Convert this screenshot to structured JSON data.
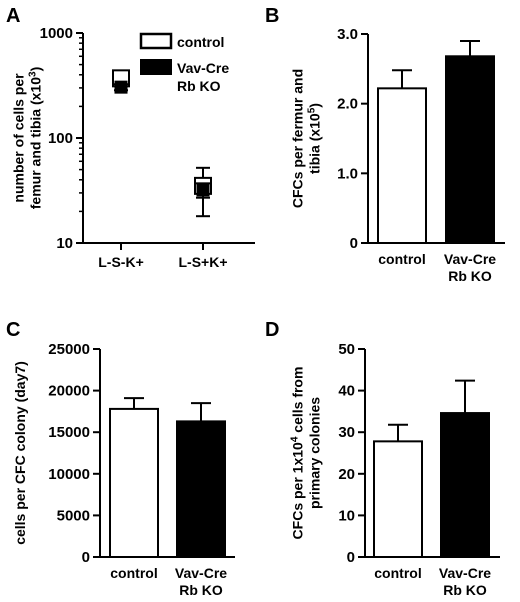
{
  "chart_data": [
    {
      "panel": "A",
      "type": "scatter",
      "scale": "log",
      "ylabel_lines": [
        "number of cells per",
        "femur and tibia (x10³)"
      ],
      "ylim": [
        10,
        1000
      ],
      "yticks": [
        10,
        100,
        1000
      ],
      "categories": [
        "L-S-K+",
        "L-S+K+"
      ],
      "legend": [
        "control",
        "Vav-Cre\nRb KO"
      ],
      "legend_lines": [
        [
          "control"
        ],
        [
          "Vav-Cre",
          "Rb KO"
        ]
      ],
      "legend_position": "top-right",
      "series": [
        {
          "name": "control",
          "values": [
            370,
            35
          ],
          "err": [
            50,
            17
          ],
          "color": "#ffffff"
        },
        {
          "name": "Vav-Cre Rb KO",
          "values": [
            305,
            32
          ],
          "err": [
            20,
            5
          ],
          "color": "#000000"
        }
      ]
    },
    {
      "panel": "B",
      "type": "bar",
      "ylabel_lines": [
        "CFCs per fermur and",
        "tibia (x10⁵)"
      ],
      "ylim": [
        0,
        3.0
      ],
      "yticks": [
        "0",
        "1.0",
        "2.0",
        "3.0"
      ],
      "categories": [
        "control",
        "Vav-Cre\nRb KO"
      ],
      "category_lines": [
        [
          "control"
        ],
        [
          "Vav-Cre",
          "Rb KO"
        ]
      ],
      "values": [
        2.22,
        2.68
      ],
      "err": [
        0.26,
        0.22
      ],
      "colors": [
        "#ffffff",
        "#000000"
      ]
    },
    {
      "panel": "C",
      "type": "bar",
      "ylabel_lines": [
        "cells per CFC colony (day7)"
      ],
      "ylim": [
        0,
        25000
      ],
      "yticks": [
        "0",
        "5000",
        "10000",
        "15000",
        "20000",
        "25000"
      ],
      "categories": [
        "control",
        "Vav-Cre\nRb KO"
      ],
      "category_lines": [
        [
          "control"
        ],
        [
          "Vav-Cre",
          "Rb KO"
        ]
      ],
      "values": [
        17800,
        16300
      ],
      "err": [
        1300,
        2200
      ],
      "colors": [
        "#ffffff",
        "#000000"
      ]
    },
    {
      "panel": "D",
      "type": "bar",
      "ylabel_lines": [
        "CFCs per 1x10⁴ cells from",
        "primary colonies"
      ],
      "ylim": [
        0,
        50
      ],
      "yticks": [
        "0",
        "10",
        "20",
        "30",
        "40",
        "50"
      ],
      "categories": [
        "control",
        "Vav-Cre\nRb KO"
      ],
      "category_lines": [
        [
          "control"
        ],
        [
          "Vav-Cre",
          "Rb KO"
        ]
      ],
      "values": [
        27.8,
        34.6
      ],
      "err": [
        4.0,
        7.8
      ],
      "colors": [
        "#ffffff",
        "#000000"
      ]
    }
  ]
}
